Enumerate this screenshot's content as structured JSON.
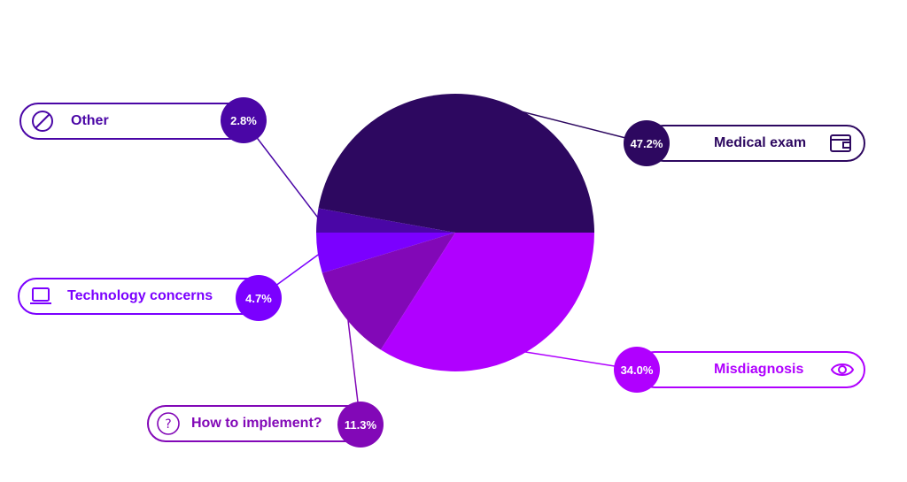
{
  "chart_data": {
    "type": "pie",
    "title": "",
    "start_angle_deg": 0,
    "direction": "counterclockwise",
    "slices": [
      {
        "label": "Medical exam",
        "value": 47.2,
        "value_label": "47.2%",
        "color": "#2d0860",
        "icon": "wallet-icon"
      },
      {
        "label": "Other",
        "value": 2.8,
        "value_label": "2.8%",
        "color": "#4a06a6",
        "icon": "slashed-circle-icon"
      },
      {
        "label": "Technology concerns",
        "value": 4.7,
        "value_label": "4.7%",
        "color": "#7b00ff",
        "icon": "laptop-icon"
      },
      {
        "label": "How to implement?",
        "value": 11.3,
        "value_label": "11.3%",
        "color": "#8208b7",
        "icon": "question-circle-icon"
      },
      {
        "label": "Misdiagnosis",
        "value": 34.0,
        "value_label": "34.0%",
        "color": "#b000ff",
        "icon": "eye-icon"
      }
    ]
  }
}
